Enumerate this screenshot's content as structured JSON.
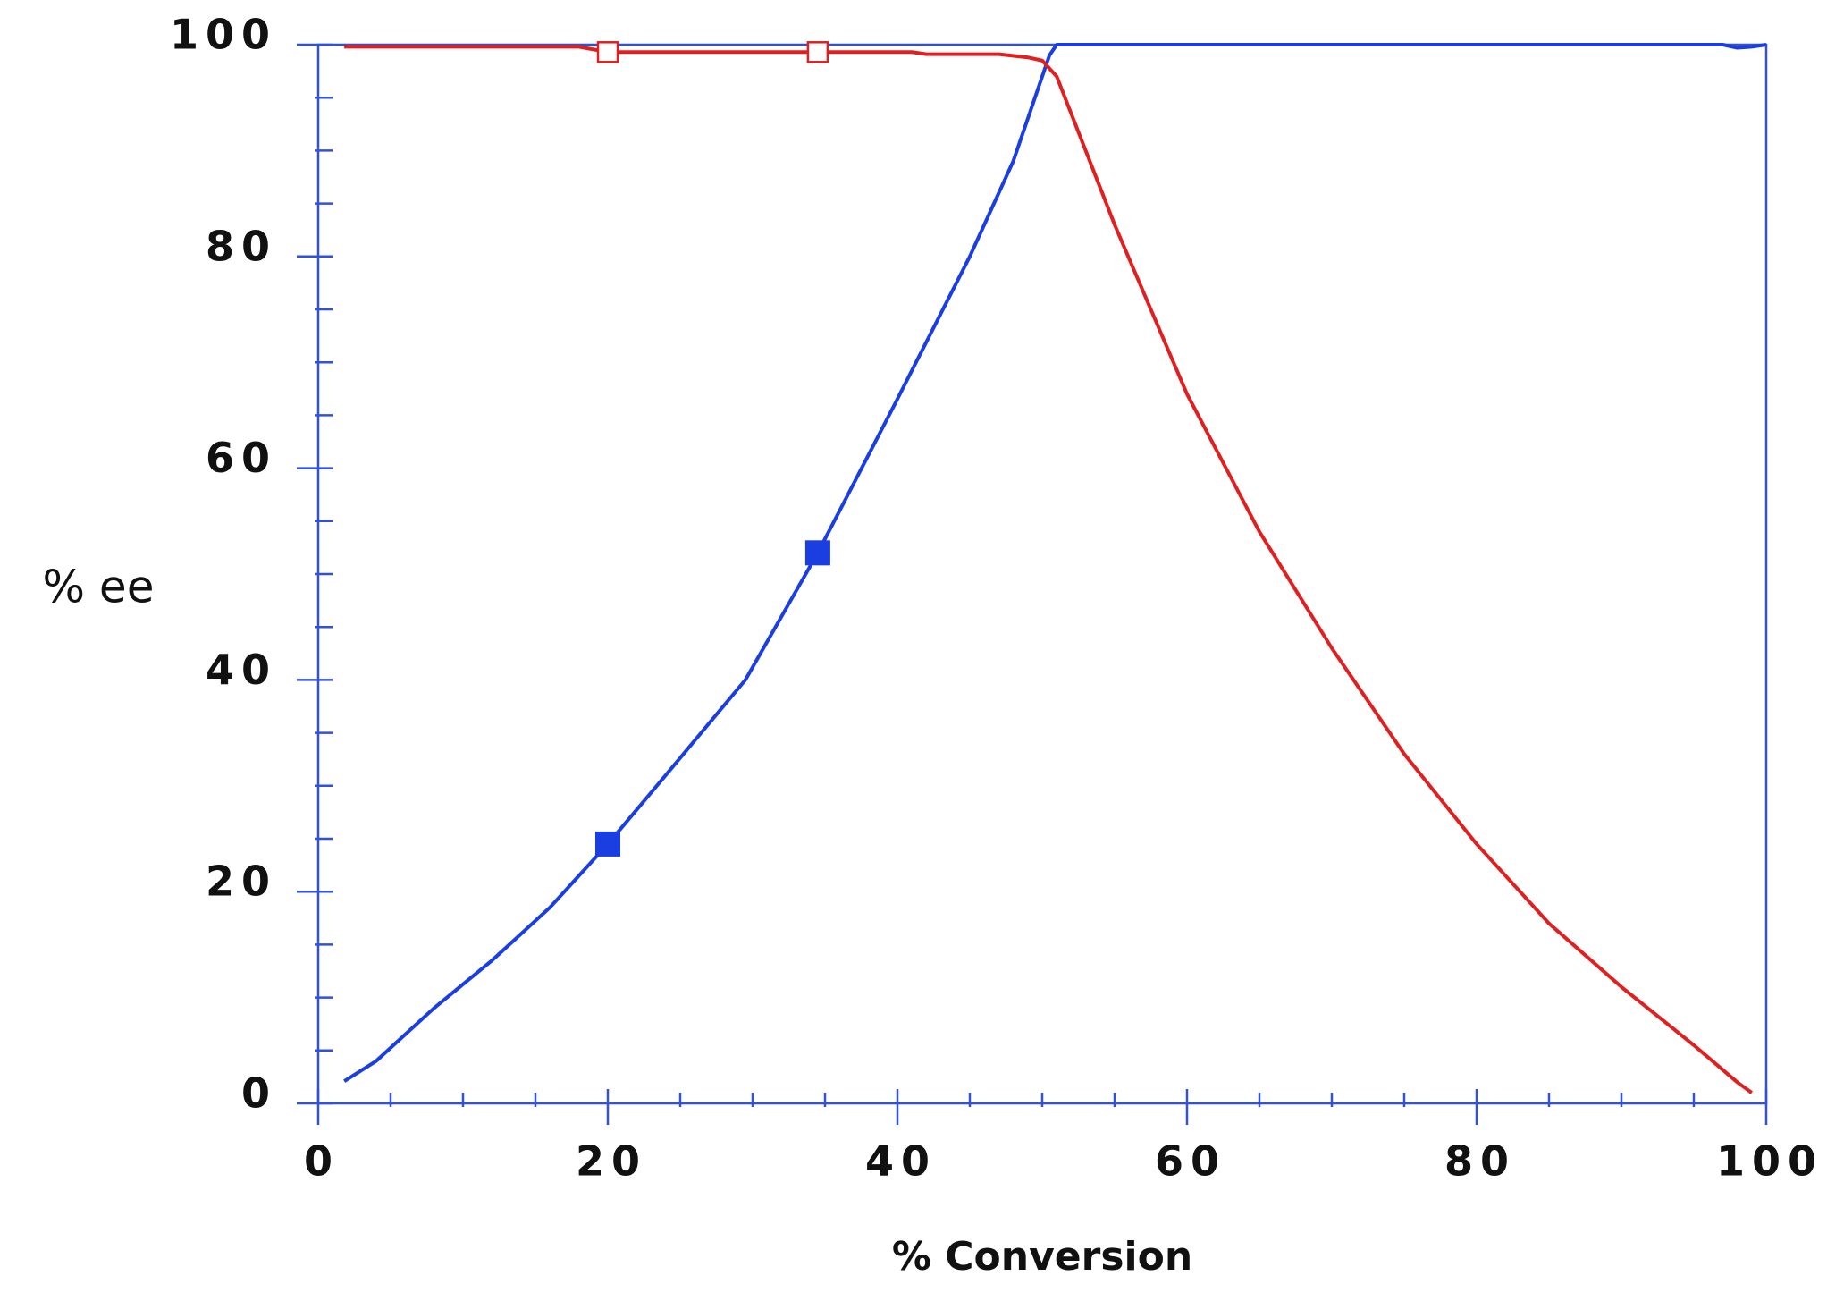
{
  "chart_data": {
    "type": "line",
    "xlabel": "%  Conversion",
    "ylabel": "% ee",
    "xlim": [
      0,
      100
    ],
    "ylim": [
      0,
      100
    ],
    "xticks": [
      0,
      20,
      40,
      60,
      80,
      100
    ],
    "yticks": [
      0,
      20,
      40,
      60,
      80,
      100
    ],
    "xminorticks": [
      5,
      10,
      15,
      25,
      30,
      35,
      45,
      50,
      55,
      65,
      70,
      75,
      85,
      90,
      95
    ],
    "yminorticks": [
      5,
      10,
      15,
      25,
      30,
      35,
      45,
      50,
      55,
      65,
      70,
      75,
      85,
      90,
      95
    ],
    "frame_color": "#3050e0",
    "series": [
      {
        "color": "#1a3ee0",
        "style": "line",
        "x": [
          1.8,
          4,
          8,
          12,
          16,
          20,
          24,
          29.5,
          34.5,
          39.8,
          45,
          48,
          50,
          50.5,
          51,
          60,
          70,
          80,
          90,
          97,
          98,
          99,
          100
        ],
        "values": [
          2.1,
          4,
          9,
          13.5,
          18.5,
          24.5,
          31,
          40,
          52,
          66,
          80,
          89,
          97,
          99,
          100,
          100,
          100,
          100,
          100,
          100,
          99.7,
          99.8,
          100
        ]
      },
      {
        "color": "#e02020",
        "style": "line",
        "x": [
          1.8,
          10,
          18,
          20,
          34.5,
          41,
          42,
          47,
          49,
          50,
          51,
          53,
          55,
          60,
          65,
          70,
          75,
          80,
          85,
          90,
          95,
          98,
          99
        ],
        "values": [
          99.8,
          99.8,
          99.8,
          99.3,
          99.3,
          99.3,
          99.1,
          99.1,
          98.8,
          98.5,
          97,
          90,
          83,
          67,
          54,
          43,
          33,
          24.5,
          17,
          11,
          5.5,
          2,
          1
        ]
      },
      {
        "color": "#1a3ee0",
        "style": "filled-squares",
        "x": [
          20,
          34.5
        ],
        "values": [
          24.5,
          52
        ]
      },
      {
        "color": "#e02020",
        "style": "open-squares",
        "x": [
          20,
          34.5
        ],
        "values": [
          99.3,
          99.3
        ]
      }
    ]
  }
}
